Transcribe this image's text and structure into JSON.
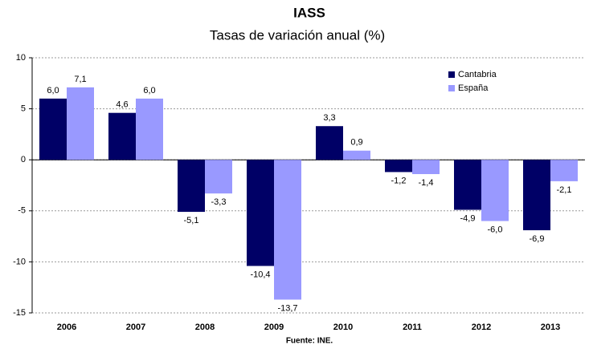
{
  "chart_data": {
    "type": "bar",
    "title": "IASS",
    "subtitle": "Tasas de variación anual (%)",
    "categories": [
      "2006",
      "2007",
      "2008",
      "2009",
      "2010",
      "2011",
      "2012",
      "2013"
    ],
    "series": [
      {
        "name": "Cantabria",
        "color": "#000066",
        "values": [
          6.0,
          4.6,
          -5.1,
          -10.4,
          3.3,
          -1.2,
          -4.9,
          -6.9
        ],
        "value_labels": [
          "6,0",
          "4,6",
          "-5,1",
          "-10,4",
          "3,3",
          "-1,2",
          "-4,9",
          "-6,9"
        ]
      },
      {
        "name": "España",
        "color": "#9999ff",
        "values": [
          7.1,
          6.0,
          -3.3,
          -13.7,
          0.9,
          -1.4,
          -6.0,
          -2.1
        ],
        "value_labels": [
          "7,1",
          "6,0",
          "-3,3",
          "-13,7",
          "0,9",
          "-1,4",
          "-6,0",
          "-2,1"
        ]
      }
    ],
    "ylim": [
      -15,
      10
    ],
    "yticks": [
      10,
      5,
      0,
      -5,
      -10,
      -15
    ],
    "grid": true,
    "legend": "top-right",
    "source": "Fuente: INE."
  }
}
